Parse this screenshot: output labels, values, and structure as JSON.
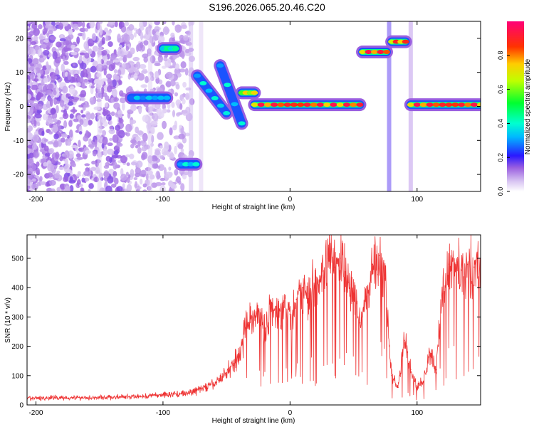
{
  "title": "S196.2026.065.20.46.C20",
  "chart_data": [
    {
      "type": "heatmap",
      "panel": "spectrogram",
      "xlabel": "Height of straight line (km)",
      "ylabel": "Frequency (Hz)",
      "xlim": [
        -207,
        150
      ],
      "ylim": [
        -25,
        25
      ],
      "xticks": [
        -200,
        -100,
        0,
        100
      ],
      "yticks": [
        -20,
        -10,
        0,
        10,
        20
      ],
      "colorbar": {
        "label": "Normalized spectral amplitude",
        "range": [
          0.0,
          1.0
        ],
        "ticks": [
          0.0,
          0.2,
          0.4,
          0.6,
          0.8
        ],
        "tick_labels": [
          "0.0",
          "0.2",
          "0.4",
          "0.6",
          "0.8"
        ]
      },
      "features": [
        {
          "x_start": -125,
          "x_end": -97,
          "freq": 2.5,
          "amp": 0.35
        },
        {
          "x_start": -100,
          "x_end": -90,
          "freq": 17,
          "amp": 0.45
        },
        {
          "x_start": -86,
          "x_end": -74,
          "freq": -17,
          "amp": 0.4
        },
        {
          "x_start": -73,
          "x_end": -50,
          "freq_start": 9,
          "freq_end": -2,
          "amp": 0.4
        },
        {
          "x_start": -55,
          "x_end": -38,
          "freq_start": 12,
          "freq_end": -5,
          "amp": 0.4
        },
        {
          "x_start": -38,
          "x_end": -28,
          "freq": 4,
          "amp": 0.75
        },
        {
          "x_start": -28,
          "x_end": 55,
          "freq": 0.5,
          "amp": 0.95
        },
        {
          "x_start": 57,
          "x_end": 76,
          "freq": 16,
          "amp": 0.95
        },
        {
          "x_start": 80,
          "x_end": 91,
          "freq": 19,
          "amp": 0.9
        },
        {
          "x_start": 95,
          "x_end": 150,
          "freq": 0.5,
          "amp": 0.95
        }
      ]
    },
    {
      "type": "line",
      "panel": "snr",
      "xlabel": "Height of straight line (km)",
      "ylabel": "SNR (10 * v/v)",
      "xlim": [
        -207,
        150
      ],
      "ylim": [
        0,
        580
      ],
      "xticks": [
        -200,
        -100,
        0,
        100
      ],
      "yticks": [
        0,
        100,
        200,
        300,
        400,
        500
      ],
      "color": "#ee3333",
      "series": [
        {
          "name": "SNR",
          "x": [
            -207,
            -180,
            -150,
            -120,
            -100,
            -80,
            -70,
            -60,
            -50,
            -40,
            -35,
            -30,
            -25,
            -20,
            -15,
            -10,
            -5,
            0,
            5,
            10,
            15,
            20,
            25,
            30,
            35,
            40,
            45,
            50,
            55,
            60,
            65,
            70,
            75,
            80,
            85,
            90,
            95,
            100,
            105,
            110,
            115,
            120,
            125,
            130,
            135,
            140,
            145,
            150
          ],
          "y": [
            22,
            25,
            25,
            28,
            35,
            40,
            55,
            70,
            110,
            170,
            260,
            300,
            320,
            260,
            330,
            300,
            350,
            310,
            360,
            400,
            380,
            420,
            440,
            500,
            470,
            500,
            420,
            380,
            280,
            370,
            480,
            510,
            430,
            100,
            60,
            220,
            120,
            60,
            80,
            180,
            120,
            380,
            480,
            470,
            460,
            480,
            470,
            480
          ]
        }
      ]
    }
  ]
}
